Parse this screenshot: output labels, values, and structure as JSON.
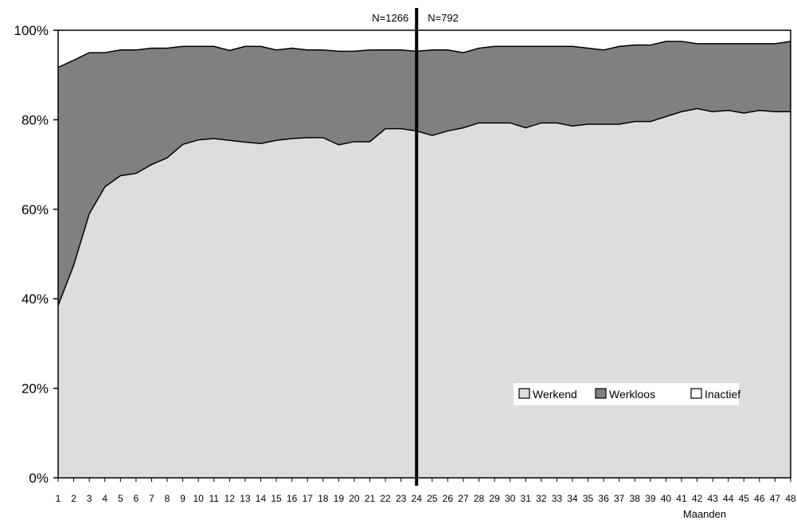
{
  "chart_data": {
    "type": "area",
    "stacked": true,
    "percent": true,
    "x": [
      1,
      2,
      3,
      4,
      5,
      6,
      7,
      8,
      9,
      10,
      11,
      12,
      13,
      14,
      15,
      16,
      17,
      18,
      19,
      20,
      21,
      22,
      23,
      24,
      25,
      26,
      27,
      28,
      29,
      30,
      31,
      32,
      33,
      34,
      35,
      36,
      37,
      38,
      39,
      40,
      41,
      42,
      43,
      44,
      45,
      46,
      47,
      48
    ],
    "x_tick_labels": [
      "1",
      "2",
      "3",
      "4",
      "5",
      "6",
      "7",
      "8",
      "9",
      "10",
      "11",
      "12",
      "13",
      "14",
      "15",
      "16",
      "17",
      "18",
      "19",
      "20",
      "21",
      "22",
      "23",
      "24",
      "25",
      "26",
      "27",
      "28",
      "29",
      "30",
      "31",
      "32",
      "33",
      "34",
      "35",
      "36",
      "37",
      "38",
      "39",
      "40",
      "41",
      "42",
      "43",
      "44",
      "45",
      "46",
      "47",
      "48"
    ],
    "xlabel": "Maanden",
    "ylabel": "",
    "ylim": [
      0,
      100
    ],
    "y_ticks": [
      0,
      20,
      40,
      60,
      80,
      100
    ],
    "y_tick_labels": [
      "0%",
      "20%",
      "40%",
      "60%",
      "80%",
      "100%"
    ],
    "series": [
      {
        "name": "Werkend",
        "color": "#dddddd",
        "values": [
          38.5,
          47.5,
          59,
          65,
          67.5,
          68,
          70,
          71.5,
          74.5,
          75.5,
          75.8,
          75.4,
          75,
          74.7,
          75.4,
          75.8,
          76,
          76,
          74.4,
          75.1,
          75.1,
          78,
          78,
          77.5,
          76.5,
          77.5,
          78.2,
          79.3,
          79.3,
          79.3,
          78.2,
          79.3,
          79.3,
          78.6,
          79,
          79,
          79,
          79.6,
          79.6,
          80.7,
          81.8,
          82.5,
          81.8,
          82.1,
          81.5,
          82.1,
          81.8,
          81.8
        ]
      },
      {
        "name": "Werkloos",
        "color": "#808080",
        "values": [
          53.2,
          45.8,
          36,
          30,
          28.1,
          27.6,
          26,
          24.5,
          21.9,
          20.9,
          20.6,
          20.1,
          21.4,
          21.7,
          20.2,
          20.2,
          19.6,
          19.6,
          20.9,
          20.2,
          20.5,
          17.6,
          17.6,
          17.8,
          19.1,
          18.1,
          16.8,
          16.7,
          17.1,
          17.1,
          18.2,
          17.1,
          17.1,
          17.8,
          17,
          16.6,
          17.4,
          17.1,
          17.1,
          16.8,
          15.7,
          14.5,
          15.2,
          14.9,
          15.5,
          14.9,
          15.2,
          15.7
        ]
      },
      {
        "name": "Inactief",
        "color": "#ffffff",
        "values": [
          8.3,
          6.7,
          5,
          5,
          4.4,
          4.4,
          4,
          4,
          3.6,
          3.6,
          3.6,
          4.5,
          3.6,
          3.6,
          4.4,
          4,
          4.4,
          4.4,
          4.7,
          4.7,
          4.4,
          4.4,
          4.4,
          4.7,
          4.4,
          4.4,
          5,
          4,
          3.6,
          3.6,
          3.6,
          3.6,
          3.6,
          3.6,
          4,
          4.4,
          3.6,
          3.3,
          3.3,
          2.5,
          2.5,
          3,
          3,
          3,
          3,
          3,
          3,
          2.5
        ]
      }
    ],
    "divider": {
      "after_x": 24,
      "left_label": "N=1266",
      "right_label": "N=792"
    },
    "legend_position": "bottom-right, inside plot",
    "grid": false
  }
}
